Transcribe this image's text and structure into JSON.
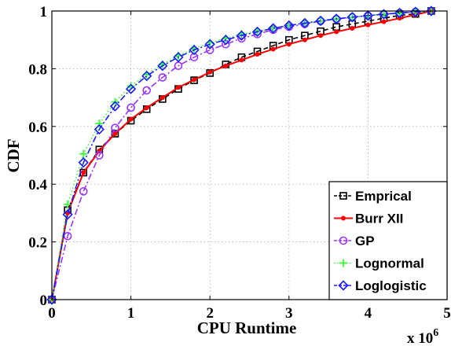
{
  "chart_data": {
    "type": "line",
    "title": "",
    "xlabel": "CPU Runtime",
    "ylabel": "CDF",
    "x_multiplier": "x 10",
    "x_multiplier_exp": "6",
    "xlim": [
      0,
      5
    ],
    "ylim": [
      0,
      1
    ],
    "x_ticks": [
      0,
      1,
      2,
      3,
      4,
      5
    ],
    "x_tick_labels": [
      "0",
      "1",
      "2",
      "3",
      "4",
      "5"
    ],
    "y_ticks": [
      0,
      0.2,
      0.4,
      0.6,
      0.8,
      1
    ],
    "y_tick_labels": [
      "0",
      "0.2",
      "0.4",
      "0.6",
      "0.8",
      "1"
    ],
    "grid": true,
    "legend_position": "bottom-right",
    "series": [
      {
        "name": "Emprical",
        "color": "#000000",
        "line_style": "dashed",
        "marker": "square",
        "x": [
          0,
          0.2,
          0.4,
          0.6,
          0.8,
          1.0,
          1.2,
          1.4,
          1.6,
          1.8,
          2.0,
          2.2,
          2.4,
          2.6,
          2.8,
          3.0,
          3.2,
          3.4,
          3.6,
          3.8,
          4.0,
          4.2,
          4.4,
          4.6,
          4.8
        ],
        "y": [
          0,
          0.31,
          0.44,
          0.52,
          0.575,
          0.62,
          0.66,
          0.695,
          0.73,
          0.76,
          0.785,
          0.815,
          0.84,
          0.86,
          0.88,
          0.9,
          0.915,
          0.93,
          0.945,
          0.955,
          0.965,
          0.975,
          0.985,
          0.99,
          1.0
        ]
      },
      {
        "name": "Burr XII",
        "color": "#ff0000",
        "line_style": "solid",
        "marker": "dot",
        "x": [
          0,
          0.2,
          0.4,
          0.6,
          0.8,
          1.0,
          1.2,
          1.4,
          1.6,
          1.8,
          2.0,
          2.2,
          2.4,
          2.6,
          2.8,
          3.0,
          3.2,
          3.4,
          3.6,
          3.8,
          4.0,
          4.2,
          4.4,
          4.6,
          4.8
        ],
        "y": [
          0,
          0.3,
          0.44,
          0.515,
          0.575,
          0.625,
          0.665,
          0.7,
          0.735,
          0.762,
          0.788,
          0.81,
          0.83,
          0.85,
          0.868,
          0.885,
          0.9,
          0.915,
          0.928,
          0.94,
          0.952,
          0.963,
          0.975,
          0.987,
          1.0
        ]
      },
      {
        "name": "GP",
        "color": "#9933ff",
        "line_style": "dashdot",
        "marker": "circle",
        "x": [
          0,
          0.2,
          0.4,
          0.6,
          0.8,
          1.0,
          1.2,
          1.4,
          1.6,
          1.8,
          2.0,
          2.2,
          2.4,
          2.6,
          2.8,
          3.0,
          3.2,
          3.4,
          3.6,
          3.8,
          4.0,
          4.2,
          4.4,
          4.6,
          4.8
        ],
        "y": [
          0,
          0.22,
          0.375,
          0.5,
          0.595,
          0.665,
          0.725,
          0.77,
          0.81,
          0.84,
          0.865,
          0.885,
          0.905,
          0.92,
          0.935,
          0.945,
          0.955,
          0.965,
          0.972,
          0.978,
          0.984,
          0.989,
          0.993,
          0.997,
          1.0
        ]
      },
      {
        "name": "Lognormal",
        "color": "#33ff33",
        "line_style": "dotted",
        "marker": "plus",
        "x": [
          0,
          0.2,
          0.4,
          0.6,
          0.8,
          1.0,
          1.2,
          1.4,
          1.6,
          1.8,
          2.0,
          2.2,
          2.4,
          2.6,
          2.8,
          3.0,
          3.2,
          3.4,
          3.6,
          3.8,
          4.0,
          4.2,
          4.4,
          4.6,
          4.8
        ],
        "y": [
          0,
          0.33,
          0.505,
          0.61,
          0.685,
          0.74,
          0.78,
          0.815,
          0.845,
          0.87,
          0.89,
          0.905,
          0.92,
          0.93,
          0.94,
          0.95,
          0.958,
          0.965,
          0.972,
          0.978,
          0.983,
          0.988,
          0.992,
          0.996,
          1.0
        ]
      },
      {
        "name": "Loglogistic",
        "color": "#1a1aff",
        "line_style": "dashdot",
        "marker": "diamond",
        "x": [
          0,
          0.2,
          0.4,
          0.6,
          0.8,
          1.0,
          1.2,
          1.4,
          1.6,
          1.8,
          2.0,
          2.2,
          2.4,
          2.6,
          2.8,
          3.0,
          3.2,
          3.4,
          3.6,
          3.8,
          4.0,
          4.2,
          4.4,
          4.6,
          4.8
        ],
        "y": [
          0,
          0.295,
          0.475,
          0.59,
          0.67,
          0.73,
          0.775,
          0.81,
          0.84,
          0.865,
          0.885,
          0.9,
          0.915,
          0.928,
          0.94,
          0.95,
          0.958,
          0.966,
          0.973,
          0.979,
          0.984,
          0.989,
          0.993,
          0.997,
          1.0
        ]
      }
    ]
  }
}
